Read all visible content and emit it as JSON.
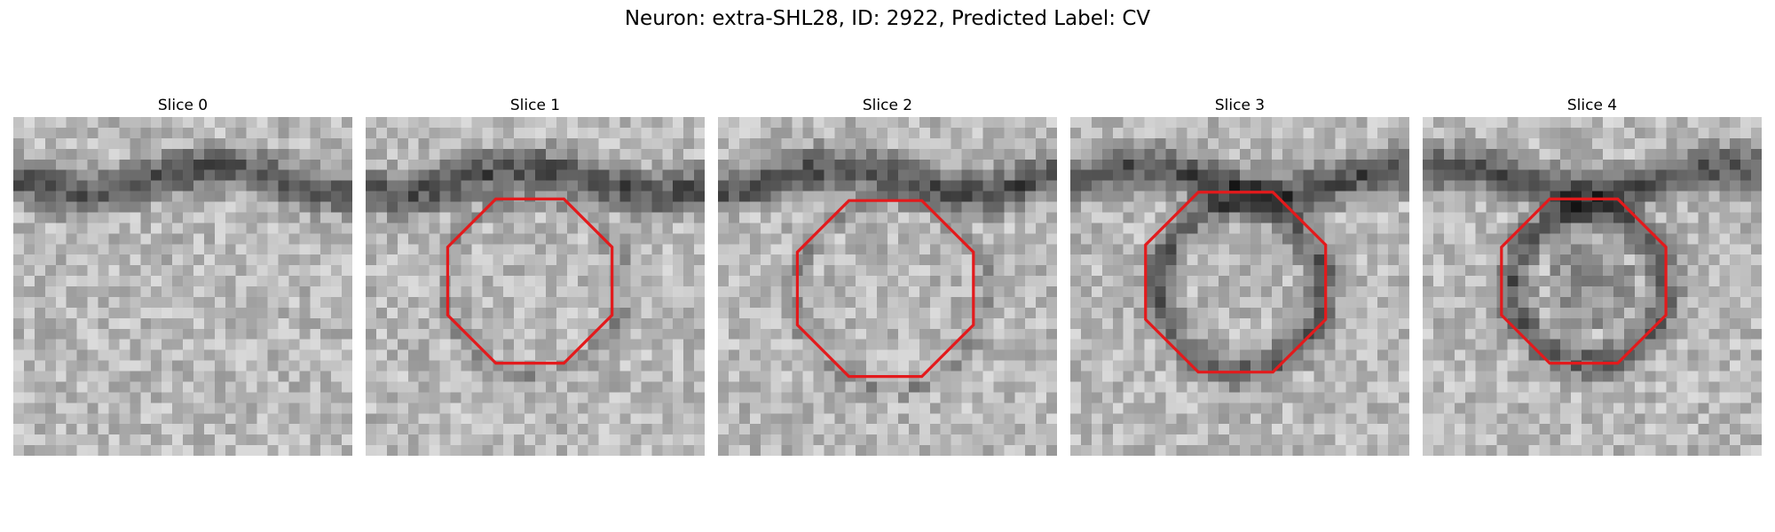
{
  "figure": {
    "title": "Neuron: extra-SHL28, ID: 2922, Predicted Label: CV"
  },
  "slices": [
    {
      "title": "Slice 0",
      "has_outline": false,
      "dark_band": true,
      "dark_ring": false
    },
    {
      "title": "Slice 1",
      "has_outline": true,
      "dark_band": true,
      "dark_ring": false
    },
    {
      "title": "Slice 2",
      "has_outline": true,
      "dark_band": true,
      "dark_ring": false
    },
    {
      "title": "Slice 3",
      "has_outline": true,
      "dark_band": true,
      "dark_ring": true
    },
    {
      "title": "Slice 4",
      "has_outline": true,
      "dark_band": true,
      "dark_ring": true
    }
  ],
  "colors": {
    "outline": "#e31a1c",
    "background": "#ffffff"
  },
  "colormap": "gray"
}
